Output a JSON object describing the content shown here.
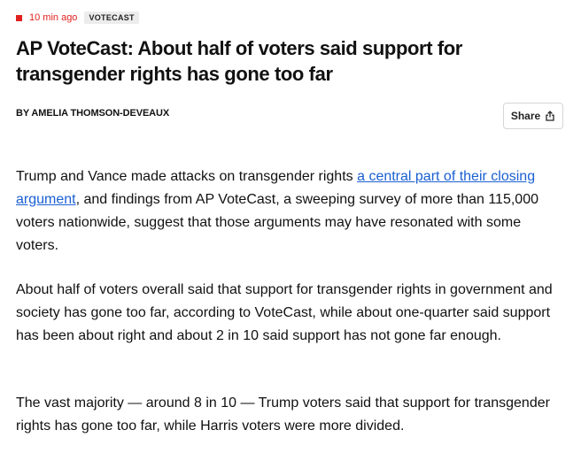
{
  "meta": {
    "time_ago": "10 min ago",
    "tag": "VOTECAST",
    "live_color": "#e0211f"
  },
  "article": {
    "headline": "AP VoteCast: About half of voters said support for transgender rights has gone too far",
    "byline": "BY AMELIA THOMSON-DEVEAUX",
    "share_label": "Share",
    "share_icon": "share-icon",
    "paragraphs": [
      {
        "before": "Trump and Vance made attacks on transgender rights ",
        "link": "a central part of their closing argument",
        "after": ", and findings from AP VoteCast, a sweeping survey of more than 115,000 voters nationwide, suggest that those arguments may have resonated with some voters."
      },
      {
        "text": "About half of voters overall said that support for transgender rights in government and society has gone too far, according to VoteCast, while about one-quarter said support has been about right and about 2 in 10 said support has not gone far enough."
      },
      {
        "text": "The vast majority — around 8 in 10 — Trump voters said that support for transgender rights has gone too far, while Harris voters were more divided."
      }
    ],
    "link_color": "#1a5fd1"
  }
}
